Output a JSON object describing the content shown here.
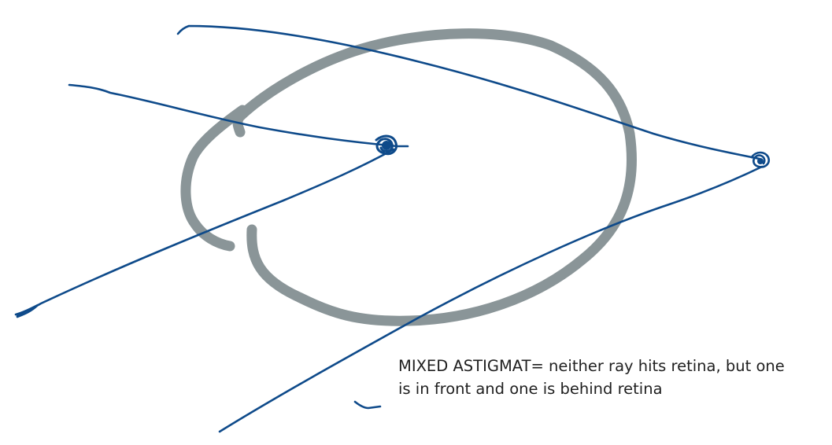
{
  "canvas": {
    "background": "#ffffff"
  },
  "drawing": {
    "eye_outline_color": "#8a9598",
    "ray_color": "#0e4a8a",
    "shapes": [
      "eye-outline",
      "ray-upper-to-behind-focus",
      "ray-lower-to-behind-focus",
      "ray-upper-to-front-focus",
      "ray-lower-to-front-focus",
      "front-focus-point",
      "behind-focus-point"
    ]
  },
  "annotation": {
    "line1": "MIXED ASTIGMAT= neither ray hits retina, but one",
    "line2": "is in front and one is behind retina"
  }
}
